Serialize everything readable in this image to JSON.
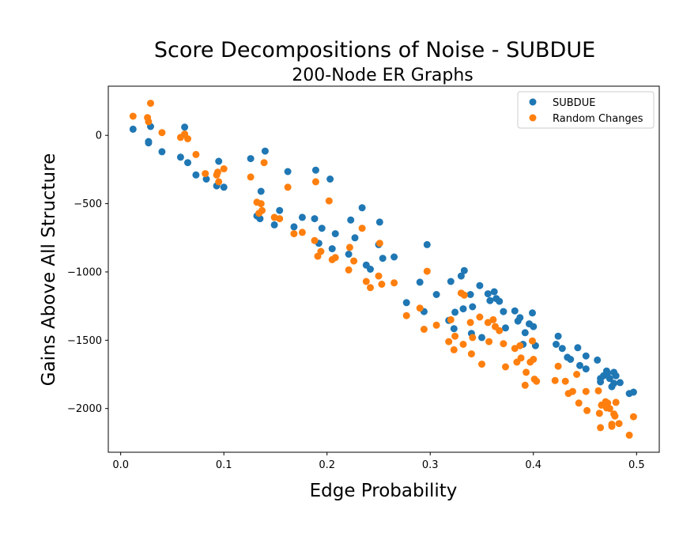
{
  "chart_data": {
    "type": "scatter",
    "title": "Score Decompositions of Noise - SUBDUE",
    "subtitle": "200-Node ER Graphs",
    "xlabel": "Edge Probability",
    "ylabel": "Gains Above All Structure",
    "xlim": [
      -0.012,
      0.522
    ],
    "ylim": [
      -2320,
      360
    ],
    "xticks": [
      0.0,
      0.1,
      0.2,
      0.3,
      0.4,
      0.5
    ],
    "xtick_labels": [
      "0.0",
      "0.1",
      "0.2",
      "0.3",
      "0.4",
      "0.5"
    ],
    "yticks": [
      0,
      -500,
      -1000,
      -1500,
      -2000
    ],
    "ytick_labels": [
      "0",
      "−500",
      "−1000",
      "−1500",
      "−2000"
    ],
    "grid": false,
    "legend_position": "top-right",
    "series": [
      {
        "name": "SUBDUE",
        "color": "#1f77b4",
        "points": [
          [
            0.012,
            45
          ],
          [
            0.027,
            -55
          ],
          [
            0.027,
            -45
          ],
          [
            0.029,
            65
          ],
          [
            0.04,
            -120
          ],
          [
            0.058,
            -160
          ],
          [
            0.062,
            60
          ],
          [
            0.065,
            -200
          ],
          [
            0.073,
            -290
          ],
          [
            0.083,
            -320
          ],
          [
            0.093,
            -370
          ],
          [
            0.095,
            -190
          ],
          [
            0.1,
            -380
          ],
          [
            0.126,
            -170
          ],
          [
            0.132,
            -590
          ],
          [
            0.135,
            -610
          ],
          [
            0.136,
            -410
          ],
          [
            0.14,
            -115
          ],
          [
            0.149,
            -655
          ],
          [
            0.154,
            -550
          ],
          [
            0.162,
            -265
          ],
          [
            0.168,
            -670
          ],
          [
            0.176,
            -600
          ],
          [
            0.188,
            -610
          ],
          [
            0.189,
            -255
          ],
          [
            0.192,
            -790
          ],
          [
            0.195,
            -680
          ],
          [
            0.203,
            -320
          ],
          [
            0.205,
            -830
          ],
          [
            0.208,
            -720
          ],
          [
            0.221,
            -870
          ],
          [
            0.223,
            -620
          ],
          [
            0.227,
            -750
          ],
          [
            0.234,
            -530
          ],
          [
            0.238,
            -950
          ],
          [
            0.242,
            -980
          ],
          [
            0.25,
            -800
          ],
          [
            0.251,
            -635
          ],
          [
            0.254,
            -900
          ],
          [
            0.265,
            -890
          ],
          [
            0.277,
            -1225
          ],
          [
            0.29,
            -1075
          ],
          [
            0.294,
            -1290
          ],
          [
            0.297,
            -800
          ],
          [
            0.306,
            -1165
          ],
          [
            0.318,
            -1355
          ],
          [
            0.32,
            -1070
          ],
          [
            0.323,
            -1415
          ],
          [
            0.324,
            -1295
          ],
          [
            0.33,
            -1030
          ],
          [
            0.332,
            -1270
          ],
          [
            0.333,
            -990
          ],
          [
            0.339,
            -1165
          ],
          [
            0.341,
            -1255
          ],
          [
            0.34,
            -1450
          ],
          [
            0.348,
            -1100
          ],
          [
            0.35,
            -1480
          ],
          [
            0.356,
            -1160
          ],
          [
            0.358,
            -1210
          ],
          [
            0.362,
            -1145
          ],
          [
            0.364,
            -1195
          ],
          [
            0.367,
            -1215
          ],
          [
            0.371,
            -1290
          ],
          [
            0.373,
            -1410
          ],
          [
            0.382,
            -1285
          ],
          [
            0.385,
            -1360
          ],
          [
            0.387,
            -1335
          ],
          [
            0.39,
            -1530
          ],
          [
            0.392,
            -1445
          ],
          [
            0.396,
            -1380
          ],
          [
            0.399,
            -1300
          ],
          [
            0.4,
            -1400
          ],
          [
            0.402,
            -1540
          ],
          [
            0.424,
            -1470
          ],
          [
            0.422,
            -1530
          ],
          [
            0.428,
            -1560
          ],
          [
            0.433,
            -1625
          ],
          [
            0.436,
            -1640
          ],
          [
            0.443,
            -1555
          ],
          [
            0.445,
            -1685
          ],
          [
            0.451,
            -1615
          ],
          [
            0.451,
            -1710
          ],
          [
            0.462,
            -1645
          ],
          [
            0.465,
            -1780
          ],
          [
            0.465,
            -1805
          ],
          [
            0.468,
            -1760
          ],
          [
            0.471,
            -1725
          ],
          [
            0.472,
            -1740
          ],
          [
            0.474,
            -1780
          ],
          [
            0.476,
            -1840
          ],
          [
            0.478,
            -1815
          ],
          [
            0.478,
            -1735
          ],
          [
            0.48,
            -1760
          ],
          [
            0.484,
            -1810
          ],
          [
            0.493,
            -1890
          ],
          [
            0.497,
            -1880
          ]
        ]
      },
      {
        "name": "Random Changes",
        "color": "#ff7f0e",
        "points": [
          [
            0.012,
            140
          ],
          [
            0.026,
            130
          ],
          [
            0.027,
            100
          ],
          [
            0.029,
            235
          ],
          [
            0.04,
            20
          ],
          [
            0.058,
            -15
          ],
          [
            0.062,
            10
          ],
          [
            0.065,
            -25
          ],
          [
            0.073,
            -140
          ],
          [
            0.082,
            -280
          ],
          [
            0.093,
            -290
          ],
          [
            0.094,
            -270
          ],
          [
            0.095,
            -340
          ],
          [
            0.1,
            -245
          ],
          [
            0.126,
            -305
          ],
          [
            0.132,
            -490
          ],
          [
            0.134,
            -570
          ],
          [
            0.136,
            -500
          ],
          [
            0.137,
            -550
          ],
          [
            0.139,
            -200
          ],
          [
            0.149,
            -600
          ],
          [
            0.154,
            -610
          ],
          [
            0.162,
            -380
          ],
          [
            0.168,
            -720
          ],
          [
            0.176,
            -710
          ],
          [
            0.188,
            -770
          ],
          [
            0.189,
            -340
          ],
          [
            0.191,
            -885
          ],
          [
            0.194,
            -850
          ],
          [
            0.202,
            -480
          ],
          [
            0.205,
            -910
          ],
          [
            0.208,
            -895
          ],
          [
            0.221,
            -985
          ],
          [
            0.222,
            -820
          ],
          [
            0.226,
            -920
          ],
          [
            0.234,
            -680
          ],
          [
            0.238,
            -1070
          ],
          [
            0.242,
            -1115
          ],
          [
            0.25,
            -1030
          ],
          [
            0.251,
            -790
          ],
          [
            0.253,
            -1090
          ],
          [
            0.265,
            -1080
          ],
          [
            0.277,
            -1320
          ],
          [
            0.29,
            -1265
          ],
          [
            0.294,
            -1420
          ],
          [
            0.297,
            -995
          ],
          [
            0.306,
            -1390
          ],
          [
            0.318,
            -1510
          ],
          [
            0.32,
            -1350
          ],
          [
            0.323,
            -1570
          ],
          [
            0.324,
            -1470
          ],
          [
            0.33,
            -1155
          ],
          [
            0.332,
            -1530
          ],
          [
            0.333,
            -1170
          ],
          [
            0.339,
            -1370
          ],
          [
            0.34,
            -1600
          ],
          [
            0.341,
            -1480
          ],
          [
            0.348,
            -1330
          ],
          [
            0.35,
            -1675
          ],
          [
            0.356,
            -1370
          ],
          [
            0.357,
            -1510
          ],
          [
            0.361,
            -1350
          ],
          [
            0.363,
            -1400
          ],
          [
            0.367,
            -1430
          ],
          [
            0.371,
            -1525
          ],
          [
            0.373,
            -1695
          ],
          [
            0.382,
            -1560
          ],
          [
            0.384,
            -1660
          ],
          [
            0.387,
            -1540
          ],
          [
            0.388,
            -1630
          ],
          [
            0.392,
            -1830
          ],
          [
            0.393,
            -1735
          ],
          [
            0.397,
            -1660
          ],
          [
            0.399,
            -1505
          ],
          [
            0.4,
            -1640
          ],
          [
            0.401,
            -1785
          ],
          [
            0.403,
            -1800
          ],
          [
            0.421,
            -1795
          ],
          [
            0.424,
            -1690
          ],
          [
            0.431,
            -1800
          ],
          [
            0.434,
            -1890
          ],
          [
            0.438,
            -1875
          ],
          [
            0.442,
            -1750
          ],
          [
            0.444,
            -1960
          ],
          [
            0.451,
            -1875
          ],
          [
            0.452,
            -2015
          ],
          [
            0.463,
            -1870
          ],
          [
            0.464,
            -2035
          ],
          [
            0.465,
            -2140
          ],
          [
            0.466,
            -1975
          ],
          [
            0.47,
            -1950
          ],
          [
            0.471,
            -1995
          ],
          [
            0.472,
            -1960
          ],
          [
            0.474,
            -2000
          ],
          [
            0.476,
            -2130
          ],
          [
            0.476,
            -2115
          ],
          [
            0.478,
            -2040
          ],
          [
            0.479,
            -2055
          ],
          [
            0.48,
            -1955
          ],
          [
            0.483,
            -2110
          ],
          [
            0.493,
            -2195
          ],
          [
            0.497,
            -2060
          ]
        ]
      }
    ]
  }
}
